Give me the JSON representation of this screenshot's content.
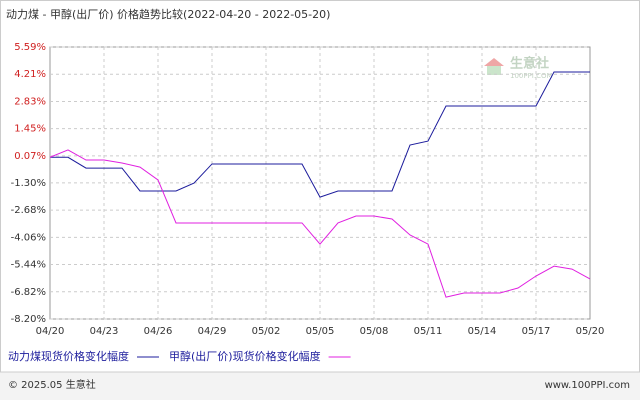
{
  "chart_data": {
    "type": "line",
    "title": "动力煤 - 甲醇(出厂价) 价格趋势比较(2022-04-20 - 2022-05-20)",
    "categories": [
      "04/20",
      null,
      null,
      "04/23",
      null,
      null,
      "04/26",
      null,
      null,
      "04/29",
      null,
      null,
      "05/02",
      null,
      null,
      "05/05",
      null,
      null,
      "05/08",
      null,
      null,
      "05/11",
      null,
      null,
      "05/14",
      null,
      null,
      "05/17",
      null,
      null,
      "05/20"
    ],
    "series": [
      {
        "name": "动力煤现货价格变化幅度",
        "color": "#1c1c9c",
        "values": [
          0,
          0,
          -0.55,
          -0.55,
          -0.55,
          -1.71,
          -1.71,
          -1.71,
          -1.31,
          -0.34,
          -0.34,
          -0.34,
          -0.34,
          -0.34,
          -0.34,
          -2.02,
          -1.71,
          -1.71,
          -1.71,
          -1.71,
          0.62,
          0.82,
          2.6,
          2.6,
          2.6,
          2.6,
          2.6,
          2.6,
          4.32,
          4.32,
          4.32
        ]
      },
      {
        "name": "甲醇(出厂价)现货价格变化幅度",
        "color": "#e020e0",
        "values": [
          0,
          0.37,
          -0.14,
          -0.14,
          -0.29,
          -0.5,
          -1.15,
          -3.33,
          -3.33,
          -3.33,
          -3.33,
          -3.33,
          -3.33,
          -3.33,
          -3.33,
          -4.4,
          -3.33,
          -2.98,
          -2.98,
          -3.13,
          -3.94,
          -4.4,
          -7.09,
          -6.88,
          -6.88,
          -6.88,
          -6.63,
          -6.02,
          -5.52,
          -5.67,
          -6.17
        ]
      }
    ],
    "ylim": [
      -8.2,
      5.59
    ],
    "yticks": [
      {
        "value": 5.59,
        "label": "5.59%"
      },
      {
        "value": 4.21,
        "label": "4.21%"
      },
      {
        "value": 2.83,
        "label": "2.83%"
      },
      {
        "value": 1.45,
        "label": "1.45%"
      },
      {
        "value": 0.07,
        "label": "0.07%"
      },
      {
        "value": -1.3,
        "label": "-1.30%"
      },
      {
        "value": -2.68,
        "label": "-2.68%"
      },
      {
        "value": -4.06,
        "label": "-4.06%"
      },
      {
        "value": -5.44,
        "label": "-5.44%"
      },
      {
        "value": -6.82,
        "label": "-6.82%"
      },
      {
        "value": -8.2,
        "label": "-8.20%"
      }
    ],
    "grid": true,
    "watermark": {
      "name": "生意社",
      "site": "100PPI.COM"
    },
    "footer": {
      "copyright": "© 2025.05 生意社",
      "url": "www.100PPI.com"
    }
  }
}
